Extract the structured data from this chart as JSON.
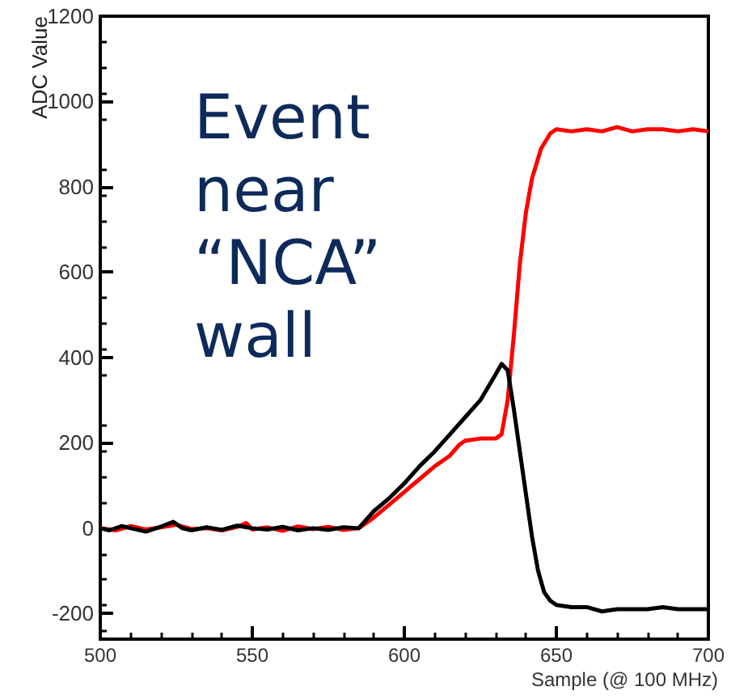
{
  "chart_data": {
    "type": "line",
    "xlabel": "Sample (@ 100 MHz)",
    "ylabel": "ADC Value",
    "annotations": [
      "Event\nnear\n“NCA”\nwall"
    ],
    "xlim": [
      500,
      700
    ],
    "xticks": [
      500,
      550,
      600,
      650,
      700
    ],
    "ylim": [
      -260,
      1200
    ],
    "yticks": [
      -200,
      0,
      200,
      400,
      600,
      800,
      1000,
      1200
    ],
    "grid": false,
    "marker": "none",
    "line_style": "solid",
    "series": [
      {
        "color": "#ff0000",
        "x": [
          500,
          505,
          510,
          515,
          520,
          525,
          530,
          535,
          540,
          545,
          548,
          550,
          555,
          560,
          565,
          570,
          575,
          580,
          585,
          590,
          595,
          600,
          605,
          610,
          615,
          618,
          620,
          625,
          630,
          632,
          634,
          636,
          638,
          640,
          642,
          645,
          648,
          650,
          655,
          660,
          665,
          670,
          675,
          680,
          685,
          690,
          695,
          700
        ],
        "values": [
          0,
          -5,
          5,
          -3,
          2,
          8,
          -2,
          0,
          -5,
          3,
          12,
          -3,
          2,
          -6,
          4,
          -2,
          3,
          -4,
          0,
          25,
          55,
          85,
          115,
          145,
          170,
          195,
          205,
          210,
          210,
          220,
          300,
          450,
          620,
          740,
          820,
          890,
          925,
          935,
          930,
          935,
          930,
          940,
          930,
          935,
          935,
          930,
          935,
          930
        ]
      },
      {
        "color": "#000000",
        "x": [
          500,
          503,
          507,
          510,
          515,
          520,
          524,
          527,
          530,
          535,
          540,
          545,
          550,
          555,
          560,
          565,
          570,
          575,
          580,
          585,
          590,
          595,
          600,
          605,
          610,
          615,
          620,
          625,
          630,
          632,
          634,
          636,
          638,
          640,
          642,
          644,
          646,
          648,
          650,
          655,
          660,
          665,
          670,
          675,
          680,
          685,
          690,
          695,
          700
        ],
        "values": [
          0,
          -5,
          5,
          0,
          -8,
          4,
          15,
          0,
          -5,
          2,
          -4,
          6,
          0,
          -3,
          3,
          -5,
          0,
          -4,
          2,
          0,
          40,
          70,
          105,
          145,
          180,
          220,
          260,
          300,
          360,
          385,
          370,
          280,
          180,
          80,
          -20,
          -100,
          -150,
          -170,
          -180,
          -185,
          -185,
          -195,
          -190,
          -190,
          -190,
          -185,
          -190,
          -190,
          -190
        ]
      }
    ]
  }
}
